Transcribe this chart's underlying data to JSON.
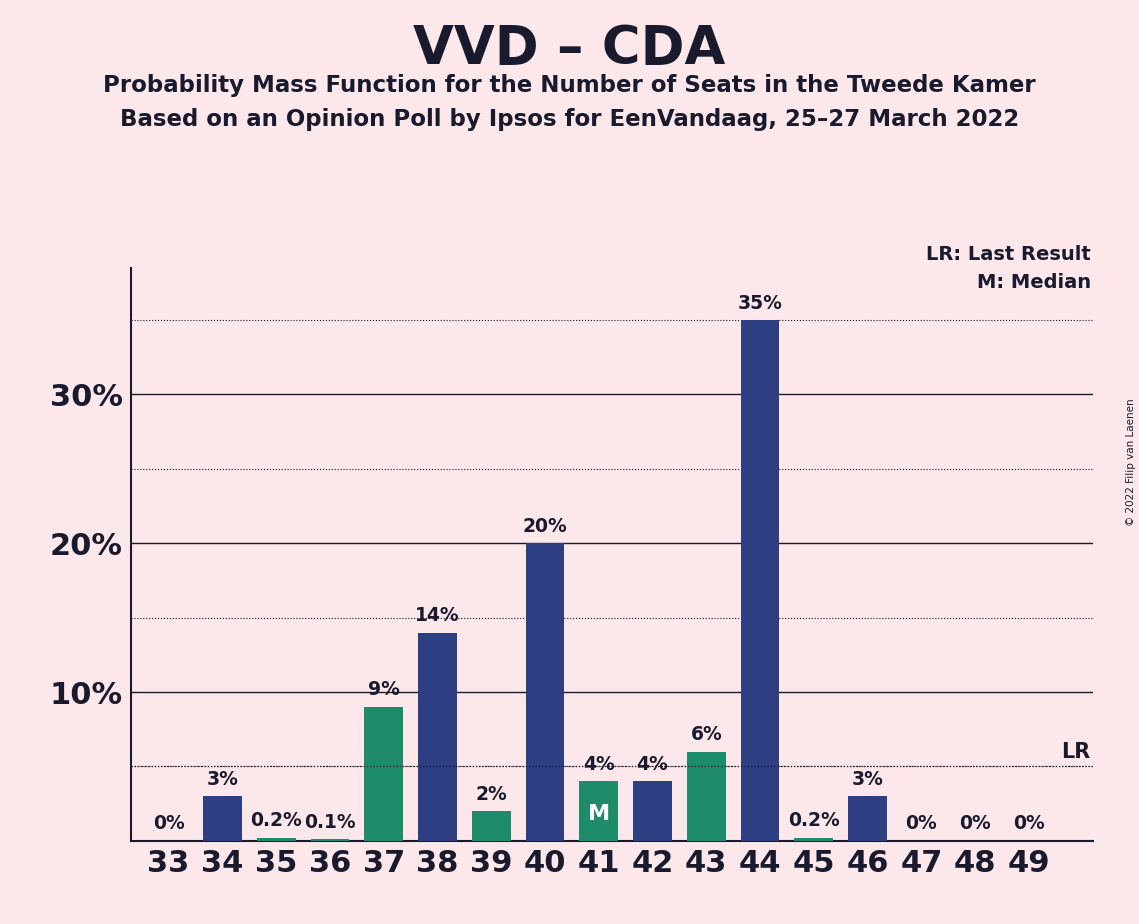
{
  "title": "VVD – CDA",
  "subtitle1": "Probability Mass Function for the Number of Seats in the Tweede Kamer",
  "subtitle2": "Based on an Opinion Poll by Ipsos for EenVandaag, 25–27 March 2022",
  "copyright": "© 2022 Filip van Laenen",
  "seats": [
    33,
    34,
    35,
    36,
    37,
    38,
    39,
    40,
    41,
    42,
    43,
    44,
    45,
    46,
    47,
    48,
    49
  ],
  "probabilities": [
    0.0,
    3.0,
    0.2,
    0.1,
    9.0,
    14.0,
    2.0,
    20.0,
    4.0,
    4.0,
    6.0,
    35.0,
    0.2,
    3.0,
    0.0,
    0.0,
    0.0
  ],
  "bar_colors": [
    "#2d3f82",
    "#2d3f82",
    "#1e8c6a",
    "#1e8c6a",
    "#1e8c6a",
    "#2d3f82",
    "#1e8c6a",
    "#2d3f82",
    "#1e8c6a",
    "#2d3f82",
    "#1e8c6a",
    "#2d3f82",
    "#1e8c6a",
    "#2d3f82",
    "#2d3f82",
    "#2d3f82",
    "#2d3f82"
  ],
  "median_seat": 41,
  "lr_value": 5.0,
  "lr_label": "LR",
  "lr_legend": "LR: Last Result",
  "median_legend": "M: Median",
  "background_color": "#fce8ea",
  "major_gridlines": [
    10,
    20,
    30
  ],
  "dotted_gridlines": [
    5,
    15,
    25,
    35
  ],
  "ymax": 38.5,
  "xmin": 32.3,
  "xmax": 50.2
}
